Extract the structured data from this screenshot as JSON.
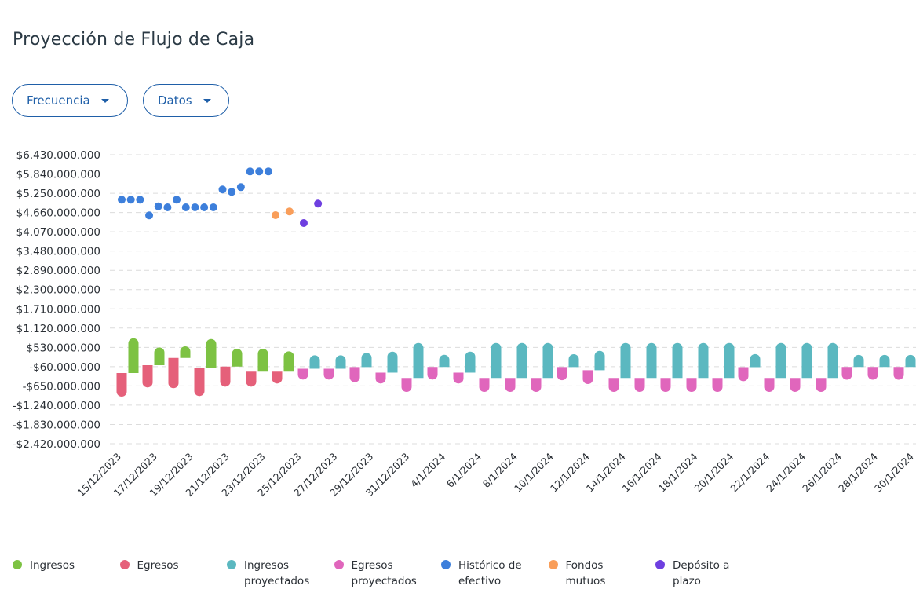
{
  "title": "Proyección de Flujo de Caja",
  "filters": {
    "frecuencia": "Frecuencia",
    "datos": "Datos"
  },
  "colors": {
    "ingresos": "#7dc243",
    "egresos": "#e5607a",
    "ingresos_proyectados": "#5bb8c0",
    "egresos_proyectados": "#e066bc",
    "historico": "#3d7fdb",
    "fondos": "#f99e5a",
    "deposito": "#6e3fe0"
  },
  "legend": [
    {
      "key": "ingresos",
      "label": "Ingresos"
    },
    {
      "key": "egresos",
      "label": "Egresos"
    },
    {
      "key": "ingresos_proyectados",
      "label": "Ingresos proyectados"
    },
    {
      "key": "egresos_proyectados",
      "label": "Egresos proyectados"
    },
    {
      "key": "historico",
      "label": "Histórico de efectivo"
    },
    {
      "key": "fondos",
      "label": "Fondos mutuos"
    },
    {
      "key": "deposito",
      "label": "Depósito a plazo"
    }
  ],
  "chart_data": {
    "type": "bar",
    "title": "Proyección de Flujo de Caja",
    "units": "CLP millions",
    "ylim": [
      -2420,
      6430
    ],
    "y_ticks": [
      6430,
      5840,
      5250,
      4660,
      4070,
      3480,
      2890,
      2300,
      1710,
      1120,
      530,
      -60,
      -650,
      -1240,
      -1830,
      -2420
    ],
    "y_tick_labels": [
      "$6.430.000.000",
      "$5.840.000.000",
      "$5.250.000.000",
      "$4.660.000.000",
      "$4.070.000.000",
      "$3.480.000.000",
      "$2.890.000.000",
      "$2.300.000.000",
      "$1.710.000.000",
      "$1.120.000.000",
      "$530.000.000",
      "-$60.000.000",
      "-$650.000.000",
      "-$1.240.000.000",
      "-$1.830.000.000",
      "-$2.420.000.000"
    ],
    "x_tick_labels": [
      "15/12/2023",
      "17/12/2023",
      "19/12/2023",
      "21/12/2023",
      "23/12/2023",
      "25/12/2023",
      "27/12/2023",
      "29/12/2023",
      "31/12/2023",
      "4/1/2024",
      "6/1/2024",
      "8/1/2024",
      "10/1/2024",
      "12/1/2024",
      "14/1/2024",
      "16/1/2024",
      "18/1/2024",
      "20/1/2024",
      "22/1/2024",
      "24/1/2024",
      "26/1/2024",
      "28/1/2024",
      "30/1/2024"
    ],
    "grid": true,
    "flows": [
      {
        "type": "real",
        "base": -256,
        "egresos": -721,
        "ingresos": 1066
      },
      {
        "type": "real",
        "base": -15,
        "egresos": -681,
        "ingresos": 545
      },
      {
        "type": "real",
        "base": 208,
        "egresos": -928,
        "ingresos": 354
      },
      {
        "type": "real",
        "base": -112,
        "egresos": -849,
        "ingresos": 897
      },
      {
        "type": "real",
        "base": -56,
        "egresos": -616,
        "ingresos": 546
      },
      {
        "type": "real",
        "base": -215,
        "egresos": -457,
        "ingresos": 705
      },
      {
        "type": "real",
        "base": -215,
        "egresos": -361,
        "ingresos": 625
      },
      {
        "type": "proj",
        "base": -124,
        "egresos": -332,
        "ingresos": 414
      },
      {
        "type": "proj",
        "base": -124,
        "egresos": -332,
        "ingresos": 414
      },
      {
        "type": "proj",
        "base": -71,
        "egresos": -466,
        "ingresos": 433
      },
      {
        "type": "proj",
        "base": -244,
        "egresos": -332,
        "ingresos": 645
      },
      {
        "type": "proj",
        "base": -407,
        "egresos": -426,
        "ingresos": 1072
      },
      {
        "type": "proj",
        "base": -70,
        "egresos": -386,
        "ingresos": 375
      },
      {
        "type": "proj",
        "base": -244,
        "egresos": -332,
        "ingresos": 645
      },
      {
        "type": "proj",
        "base": -407,
        "egresos": -426,
        "ingresos": 1072
      },
      {
        "type": "proj",
        "base": -407,
        "egresos": -426,
        "ingresos": 1072
      },
      {
        "type": "proj",
        "base": -407,
        "egresos": -426,
        "ingresos": 1072
      },
      {
        "type": "proj",
        "base": -71,
        "egresos": -404,
        "ingresos": 392
      },
      {
        "type": "proj",
        "base": -168,
        "egresos": -425,
        "ingresos": 593
      },
      {
        "type": "proj",
        "base": -407,
        "egresos": -426,
        "ingresos": 1072
      },
      {
        "type": "proj",
        "base": -407,
        "egresos": -426,
        "ingresos": 1072
      },
      {
        "type": "proj",
        "base": -407,
        "egresos": -426,
        "ingresos": 1072
      },
      {
        "type": "proj",
        "base": -407,
        "egresos": -426,
        "ingresos": 1072
      },
      {
        "type": "proj",
        "base": -407,
        "egresos": -426,
        "ingresos": 1072
      },
      {
        "type": "proj",
        "base": -75,
        "egresos": -430,
        "ingresos": 400
      },
      {
        "type": "proj",
        "base": -407,
        "egresos": -426,
        "ingresos": 1072
      },
      {
        "type": "proj",
        "base": -407,
        "egresos": -426,
        "ingresos": 1072
      },
      {
        "type": "proj",
        "base": -407,
        "egresos": -426,
        "ingresos": 1072
      },
      {
        "type": "proj",
        "base": -70,
        "egresos": -390,
        "ingresos": 370
      },
      {
        "type": "proj",
        "base": -70,
        "egresos": -390,
        "ingresos": 370
      },
      {
        "type": "proj",
        "base": -70,
        "egresos": -390,
        "ingresos": 370
      }
    ],
    "points": [
      {
        "series": "historico",
        "x": 0,
        "y": 5052
      },
      {
        "series": "historico",
        "x": 0.354,
        "y": 5052
      },
      {
        "series": "historico",
        "x": 0.708,
        "y": 5052
      },
      {
        "series": "historico",
        "x": 1.062,
        "y": 4571
      },
      {
        "series": "historico",
        "x": 1.416,
        "y": 4850
      },
      {
        "series": "historico",
        "x": 1.77,
        "y": 4819
      },
      {
        "series": "historico",
        "x": 2.124,
        "y": 5052
      },
      {
        "series": "historico",
        "x": 2.478,
        "y": 4819
      },
      {
        "series": "historico",
        "x": 2.832,
        "y": 4819
      },
      {
        "series": "historico",
        "x": 3.186,
        "y": 4819
      },
      {
        "series": "historico",
        "x": 3.54,
        "y": 4819
      },
      {
        "series": "historico",
        "x": 3.894,
        "y": 5365
      },
      {
        "series": "historico",
        "x": 4.248,
        "y": 5292
      },
      {
        "series": "historico",
        "x": 4.602,
        "y": 5437
      },
      {
        "series": "historico",
        "x": 4.956,
        "y": 5918
      },
      {
        "series": "historico",
        "x": 5.31,
        "y": 5918
      },
      {
        "series": "historico",
        "x": 5.664,
        "y": 5918
      },
      {
        "series": "fondos",
        "x": 5.94,
        "y": 4578
      },
      {
        "series": "fondos",
        "x": 6.48,
        "y": 4691
      },
      {
        "series": "deposito",
        "x": 7.03,
        "y": 4338
      },
      {
        "series": "deposito",
        "x": 7.58,
        "y": 4932
      }
    ]
  }
}
